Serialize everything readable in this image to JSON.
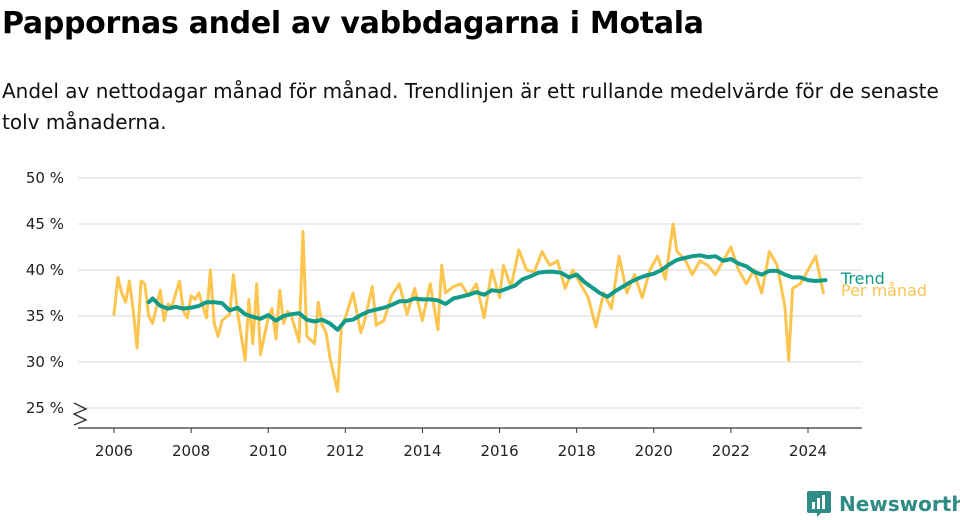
{
  "title": "Pappornas andel av vabbdagarna i Motala",
  "subtitle": "Andel av nettodagar månad för månad. Trendlinjen är ett rullande medelvärde för de senaste tolv månaderna.",
  "brand": "Newsworthy",
  "colors": {
    "monthly": "#fbc550",
    "trend": "#139b8a",
    "grid": "#d9d9d9",
    "axis": "#333333",
    "brand": "#2e8b85"
  },
  "chart_data": {
    "type": "line",
    "xlabel": "",
    "ylabel": "",
    "xlim": [
      2006.0,
      2024.95
    ],
    "ylim": [
      25,
      50
    ],
    "y_ticks": [
      25,
      30,
      35,
      40,
      45,
      50
    ],
    "y_tick_labels": [
      "25 %",
      "30 %",
      "35 %",
      "40 %",
      "45 %",
      "50 %"
    ],
    "x_ticks": [
      2006,
      2008,
      2010,
      2012,
      2014,
      2016,
      2018,
      2020,
      2022,
      2024
    ],
    "x_tick_labels": [
      "2006",
      "2008",
      "2010",
      "2012",
      "2014",
      "2016",
      "2018",
      "2020",
      "2022",
      "2024"
    ],
    "grid": true,
    "legend": "right",
    "series": [
      {
        "name": "Per månad",
        "x": [
          2006.0,
          2006.1,
          2006.2,
          2006.3,
          2006.4,
          2006.5,
          2006.6,
          2006.7,
          2006.8,
          2006.9,
          2007.0,
          2007.2,
          2007.3,
          2007.4,
          2007.5,
          2007.7,
          2007.8,
          2007.9,
          2008.0,
          2008.1,
          2008.2,
          2008.4,
          2008.5,
          2008.6,
          2008.7,
          2008.8,
          2009.0,
          2009.1,
          2009.2,
          2009.4,
          2009.5,
          2009.6,
          2009.7,
          2009.8,
          2010.0,
          2010.1,
          2010.2,
          2010.3,
          2010.4,
          2010.5,
          2010.6,
          2010.8,
          2010.9,
          2011.0,
          2011.2,
          2011.3,
          2011.4,
          2011.5,
          2011.6,
          2011.8,
          2011.9,
          2012.0,
          2012.2,
          2012.4,
          2012.5,
          2012.7,
          2012.8,
          2013.0,
          2013.2,
          2013.4,
          2013.6,
          2013.8,
          2014.0,
          2014.2,
          2014.4,
          2014.5,
          2014.6,
          2014.8,
          2015.0,
          2015.2,
          2015.4,
          2015.6,
          2015.8,
          2016.0,
          2016.1,
          2016.3,
          2016.5,
          2016.7,
          2016.9,
          2017.1,
          2017.3,
          2017.5,
          2017.7,
          2017.9,
          2018.1,
          2018.3,
          2018.5,
          2018.7,
          2018.9,
          2019.1,
          2019.3,
          2019.5,
          2019.7,
          2019.9,
          2020.1,
          2020.3,
          2020.5,
          2020.6,
          2020.8,
          2021.0,
          2021.2,
          2021.4,
          2021.6,
          2021.8,
          2022.0,
          2022.2,
          2022.4,
          2022.6,
          2022.8,
          2023.0,
          2023.2,
          2023.4,
          2023.5,
          2023.6,
          2023.8,
          2024.0,
          2024.2,
          2024.4
        ],
        "values": [
          35.2,
          39.2,
          37.5,
          36.5,
          38.8,
          35.5,
          31.5,
          38.8,
          38.5,
          35.0,
          34.2,
          37.8,
          34.5,
          36.3,
          36.0,
          38.8,
          35.5,
          34.8,
          37.2,
          36.8,
          37.5,
          34.8,
          40.0,
          34.2,
          32.8,
          34.5,
          35.2,
          39.5,
          35.5,
          30.2,
          36.8,
          32.0,
          38.5,
          30.8,
          34.8,
          35.8,
          32.5,
          37.8,
          34.2,
          35.5,
          35.0,
          32.2,
          44.2,
          32.8,
          32.0,
          36.5,
          34.0,
          33.2,
          30.5,
          26.8,
          34.0,
          34.8,
          37.5,
          33.2,
          34.5,
          38.2,
          34.0,
          34.5,
          37.2,
          38.5,
          35.2,
          38.0,
          34.5,
          38.5,
          33.5,
          40.5,
          37.5,
          38.2,
          38.5,
          37.2,
          38.5,
          34.8,
          40.0,
          37.0,
          40.5,
          38.2,
          42.2,
          40.0,
          39.8,
          42.0,
          40.5,
          41.0,
          38.0,
          40.0,
          38.5,
          37.0,
          33.8,
          37.5,
          35.8,
          41.5,
          37.5,
          39.5,
          37.0,
          40.0,
          41.5,
          39.0,
          45.0,
          42.0,
          41.2,
          39.5,
          41.0,
          40.5,
          39.5,
          41.0,
          42.5,
          40.0,
          38.5,
          40.0,
          37.5,
          42.0,
          40.5,
          36.0,
          30.2,
          38.0,
          38.5,
          40.0,
          41.5,
          37.5
        ]
      },
      {
        "name": "Trend",
        "x": [
          2006.9,
          2007.0,
          2007.2,
          2007.4,
          2007.6,
          2007.8,
          2008.0,
          2008.2,
          2008.4,
          2008.6,
          2008.8,
          2009.0,
          2009.2,
          2009.4,
          2009.6,
          2009.8,
          2010.0,
          2010.2,
          2010.4,
          2010.6,
          2010.8,
          2011.0,
          2011.2,
          2011.4,
          2011.6,
          2011.8,
          2012.0,
          2012.2,
          2012.4,
          2012.6,
          2012.8,
          2013.0,
          2013.2,
          2013.4,
          2013.6,
          2013.8,
          2014.0,
          2014.2,
          2014.4,
          2014.6,
          2014.8,
          2015.0,
          2015.2,
          2015.4,
          2015.6,
          2015.8,
          2016.0,
          2016.2,
          2016.4,
          2016.6,
          2016.8,
          2017.0,
          2017.2,
          2017.4,
          2017.6,
          2017.8,
          2018.0,
          2018.2,
          2018.4,
          2018.6,
          2018.8,
          2019.0,
          2019.2,
          2019.4,
          2019.6,
          2019.8,
          2020.0,
          2020.2,
          2020.4,
          2020.6,
          2020.8,
          2021.0,
          2021.2,
          2021.4,
          2021.6,
          2021.8,
          2022.0,
          2022.2,
          2022.4,
          2022.6,
          2022.8,
          2023.0,
          2023.2,
          2023.4,
          2023.6,
          2023.8,
          2024.0,
          2024.2,
          2024.45
        ],
        "values": [
          36.5,
          36.9,
          36.1,
          35.8,
          36.0,
          35.8,
          35.9,
          36.1,
          36.5,
          36.5,
          36.4,
          35.6,
          35.9,
          35.2,
          34.9,
          34.7,
          35.1,
          34.5,
          35.0,
          35.2,
          35.3,
          34.6,
          34.4,
          34.6,
          34.2,
          33.5,
          34.5,
          34.6,
          35.1,
          35.5,
          35.7,
          35.9,
          36.2,
          36.6,
          36.6,
          36.9,
          36.8,
          36.8,
          36.7,
          36.3,
          36.9,
          37.1,
          37.3,
          37.6,
          37.3,
          37.8,
          37.7,
          38.0,
          38.3,
          39.0,
          39.3,
          39.7,
          39.8,
          39.8,
          39.7,
          39.2,
          39.5,
          38.7,
          38.1,
          37.5,
          37.1,
          37.7,
          38.2,
          38.7,
          39.1,
          39.4,
          39.6,
          40.0,
          40.6,
          41.1,
          41.3,
          41.5,
          41.6,
          41.4,
          41.5,
          41.0,
          41.2,
          40.7,
          40.4,
          39.8,
          39.5,
          39.9,
          39.9,
          39.5,
          39.2,
          39.2,
          38.9,
          38.8,
          38.9
        ]
      }
    ]
  }
}
